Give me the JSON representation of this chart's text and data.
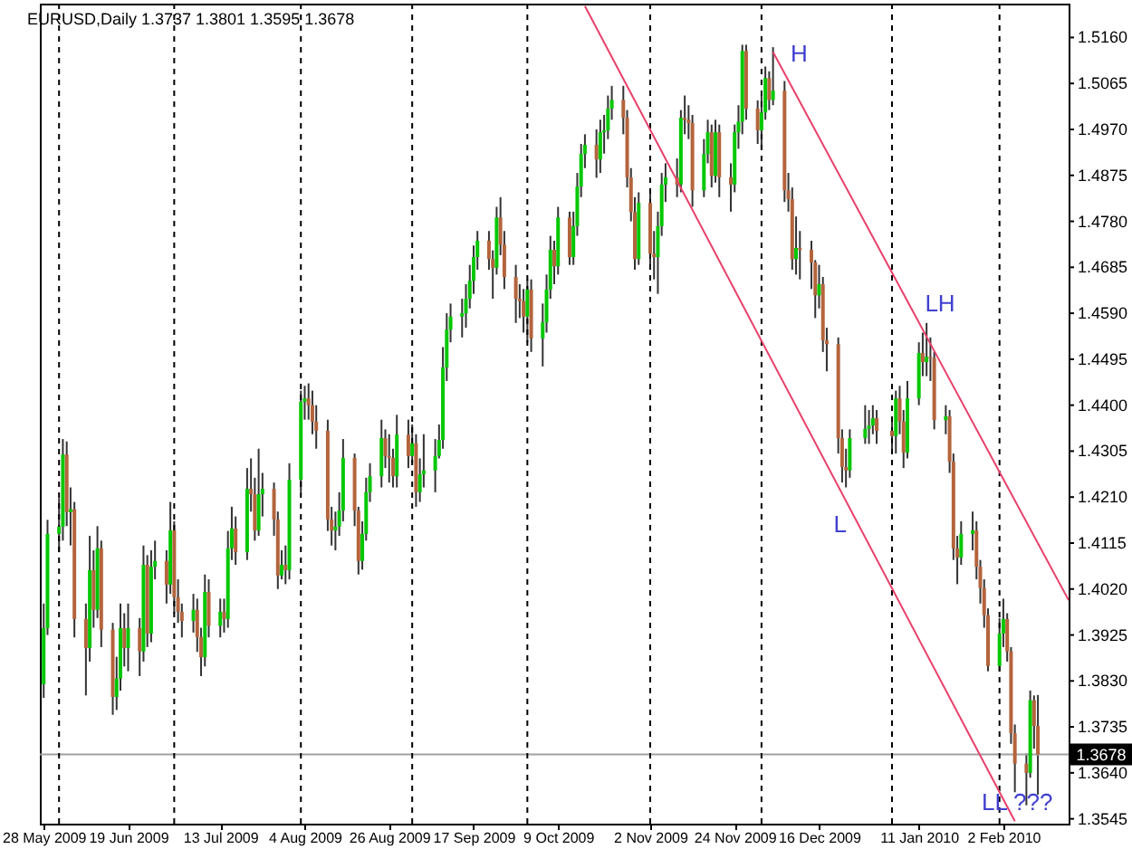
{
  "chart_data": {
    "type": "candlestick",
    "title": "EURUSD,Daily 1.3737 1.3801 1.3595 1.3678",
    "x": [
      "2009-05-28",
      "2009-05-29",
      "2009-06-01",
      "2009-06-02",
      "2009-06-03",
      "2009-06-04",
      "2009-06-05",
      "2009-06-08",
      "2009-06-09",
      "2009-06-10",
      "2009-06-11",
      "2009-06-12",
      "2009-06-15",
      "2009-06-16",
      "2009-06-17",
      "2009-06-18",
      "2009-06-19",
      "2009-06-22",
      "2009-06-23",
      "2009-06-24",
      "2009-06-25",
      "2009-06-26",
      "2009-06-29",
      "2009-06-30",
      "2009-07-01",
      "2009-07-02",
      "2009-07-03",
      "2009-07-06",
      "2009-07-07",
      "2009-07-08",
      "2009-07-09",
      "2009-07-10",
      "2009-07-13",
      "2009-07-14",
      "2009-07-15",
      "2009-07-16",
      "2009-07-17",
      "2009-07-20",
      "2009-07-21",
      "2009-07-22",
      "2009-07-23",
      "2009-07-24",
      "2009-07-27",
      "2009-07-28",
      "2009-07-29",
      "2009-07-30",
      "2009-07-31",
      "2009-08-03",
      "2009-08-04",
      "2009-08-05",
      "2009-08-06",
      "2009-08-07",
      "2009-08-10",
      "2009-08-11",
      "2009-08-12",
      "2009-08-13",
      "2009-08-14",
      "2009-08-17",
      "2009-08-18",
      "2009-08-19",
      "2009-08-20",
      "2009-08-21",
      "2009-08-24",
      "2009-08-25",
      "2009-08-26",
      "2009-08-27",
      "2009-08-28",
      "2009-08-31",
      "2009-09-01",
      "2009-09-02",
      "2009-09-03",
      "2009-09-04",
      "2009-09-07",
      "2009-09-08",
      "2009-09-09",
      "2009-09-10",
      "2009-09-11",
      "2009-09-14",
      "2009-09-15",
      "2009-09-16",
      "2009-09-17",
      "2009-09-18",
      "2009-09-21",
      "2009-09-22",
      "2009-09-23",
      "2009-09-24",
      "2009-09-25",
      "2009-09-28",
      "2009-09-29",
      "2009-09-30",
      "2009-10-01",
      "2009-10-02",
      "2009-10-05",
      "2009-10-06",
      "2009-10-07",
      "2009-10-08",
      "2009-10-09",
      "2009-10-12",
      "2009-10-13",
      "2009-10-14",
      "2009-10-15",
      "2009-10-16",
      "2009-10-19",
      "2009-10-20",
      "2009-10-21",
      "2009-10-22",
      "2009-10-23",
      "2009-10-26",
      "2009-10-27",
      "2009-10-28",
      "2009-10-29",
      "2009-10-30",
      "2009-11-02",
      "2009-11-03",
      "2009-11-04",
      "2009-11-05",
      "2009-11-06",
      "2009-11-09",
      "2009-11-10",
      "2009-11-11",
      "2009-11-12",
      "2009-11-13",
      "2009-11-16",
      "2009-11-17",
      "2009-11-18",
      "2009-11-19",
      "2009-11-20",
      "2009-11-23",
      "2009-11-24",
      "2009-11-25",
      "2009-11-26",
      "2009-11-27",
      "2009-11-30",
      "2009-12-01",
      "2009-12-02",
      "2009-12-03",
      "2009-12-04",
      "2009-12-07",
      "2009-12-08",
      "2009-12-09",
      "2009-12-10",
      "2009-12-11",
      "2009-12-14",
      "2009-12-15",
      "2009-12-16",
      "2009-12-17",
      "2009-12-18",
      "2009-12-21",
      "2009-12-22",
      "2009-12-23",
      "2009-12-24",
      "2009-12-28",
      "2009-12-29",
      "2009-12-30",
      "2009-12-31",
      "2010-01-04",
      "2010-01-05",
      "2010-01-06",
      "2010-01-07",
      "2010-01-08",
      "2010-01-11",
      "2010-01-12",
      "2010-01-13",
      "2010-01-14",
      "2010-01-15",
      "2010-01-18",
      "2010-01-19",
      "2010-01-20",
      "2010-01-21",
      "2010-01-22",
      "2010-01-25",
      "2010-01-26",
      "2010-01-27",
      "2010-01-28",
      "2010-01-29",
      "2010-02-01",
      "2010-02-02",
      "2010-02-03",
      "2010-02-04",
      "2010-02-05",
      "2010-02-08",
      "2010-02-09",
      "2010-02-10",
      "2010-02-11"
    ],
    "ohlc": [
      [
        1.3823,
        1.399,
        1.3795,
        1.3939
      ],
      [
        1.3939,
        1.4163,
        1.3925,
        1.4134
      ],
      [
        1.4134,
        1.4208,
        1.4096,
        1.4149
      ],
      [
        1.4149,
        1.433,
        1.412,
        1.4298
      ],
      [
        1.4298,
        1.4325,
        1.415,
        1.4179
      ],
      [
        1.4179,
        1.423,
        1.411,
        1.4185
      ],
      [
        1.4185,
        1.42,
        1.392,
        1.3958
      ],
      [
        1.3958,
        1.399,
        1.38,
        1.3898
      ],
      [
        1.3898,
        1.413,
        1.387,
        1.4059
      ],
      [
        1.4059,
        1.41,
        1.394,
        1.3977
      ],
      [
        1.3977,
        1.415,
        1.396,
        1.4104
      ],
      [
        1.4104,
        1.412,
        1.39,
        1.3936
      ],
      [
        1.3936,
        1.395,
        1.376,
        1.3797
      ],
      [
        1.3797,
        1.388,
        1.377,
        1.3835
      ],
      [
        1.3835,
        1.399,
        1.381,
        1.3939
      ],
      [
        1.3939,
        1.397,
        1.386,
        1.3898
      ],
      [
        1.3898,
        1.399,
        1.385,
        1.3939
      ],
      [
        1.3939,
        1.396,
        1.384,
        1.3891
      ],
      [
        1.3891,
        1.411,
        1.387,
        1.407
      ],
      [
        1.407,
        1.409,
        1.39,
        1.3928
      ],
      [
        1.3928,
        1.41,
        1.391,
        1.4066
      ],
      [
        1.4066,
        1.412,
        1.404,
        1.4078
      ],
      [
        1.4078,
        1.41,
        1.399,
        1.4029
      ],
      [
        1.4029,
        1.42,
        1.401,
        1.4141
      ],
      [
        1.4141,
        1.416,
        1.397,
        1.4003
      ],
      [
        1.4003,
        1.404,
        1.395,
        1.3973
      ],
      [
        1.3973,
        1.399,
        1.392,
        1.3954
      ],
      [
        1.3954,
        1.401,
        1.393,
        1.3977
      ],
      [
        1.3977,
        1.4,
        1.389,
        1.3921
      ],
      [
        1.3921,
        1.394,
        1.384,
        1.3879
      ],
      [
        1.3879,
        1.405,
        1.386,
        1.4014
      ],
      [
        1.4014,
        1.404,
        1.392,
        1.3944
      ],
      [
        1.3944,
        1.4,
        1.392,
        1.3973
      ],
      [
        1.3973,
        1.4,
        1.393,
        1.3958
      ],
      [
        1.3958,
        1.414,
        1.394,
        1.4104
      ],
      [
        1.4104,
        1.419,
        1.408,
        1.4145
      ],
      [
        1.4145,
        1.417,
        1.407,
        1.4096
      ],
      [
        1.4096,
        1.427,
        1.408,
        1.4227
      ],
      [
        1.4227,
        1.429,
        1.418,
        1.4216
      ],
      [
        1.4216,
        1.425,
        1.412,
        1.4141
      ],
      [
        1.4141,
        1.431,
        1.413,
        1.4216
      ],
      [
        1.4216,
        1.426,
        1.417,
        1.4227
      ],
      [
        1.4227,
        1.424,
        1.413,
        1.4164
      ],
      [
        1.4164,
        1.418,
        1.402,
        1.4048
      ],
      [
        1.4048,
        1.41,
        1.404,
        1.407
      ],
      [
        1.407,
        1.411,
        1.403,
        1.4059
      ],
      [
        1.4059,
        1.428,
        1.404,
        1.4246
      ],
      [
        1.4246,
        1.443,
        1.422,
        1.4407
      ],
      [
        1.4407,
        1.444,
        1.437,
        1.4414
      ],
      [
        1.4414,
        1.4445,
        1.437,
        1.44
      ],
      [
        1.44,
        1.443,
        1.434,
        1.4366
      ],
      [
        1.4366,
        1.44,
        1.431,
        1.4347
      ],
      [
        1.4347,
        1.437,
        1.414,
        1.4164
      ],
      [
        1.4164,
        1.419,
        1.411,
        1.4141
      ],
      [
        1.4141,
        1.418,
        1.41,
        1.4149
      ],
      [
        1.4149,
        1.422,
        1.413,
        1.4182
      ],
      [
        1.4182,
        1.433,
        1.416,
        1.4291
      ],
      [
        1.4291,
        1.43,
        1.415,
        1.4182
      ],
      [
        1.4182,
        1.419,
        1.405,
        1.4078
      ],
      [
        1.4078,
        1.416,
        1.406,
        1.4134
      ],
      [
        1.4134,
        1.425,
        1.412,
        1.422
      ],
      [
        1.422,
        1.428,
        1.42,
        1.4253
      ],
      [
        1.4253,
        1.437,
        1.423,
        1.4332
      ],
      [
        1.4332,
        1.435,
        1.427,
        1.4295
      ],
      [
        1.4295,
        1.434,
        1.424,
        1.4291
      ],
      [
        1.4291,
        1.431,
        1.423,
        1.4253
      ],
      [
        1.4253,
        1.438,
        1.423,
        1.4339
      ],
      [
        1.4339,
        1.437,
        1.427,
        1.4295
      ],
      [
        1.4295,
        1.436,
        1.428,
        1.4321
      ],
      [
        1.4321,
        1.434,
        1.419,
        1.422
      ],
      [
        1.422,
        1.429,
        1.42,
        1.4257
      ],
      [
        1.4257,
        1.434,
        1.423,
        1.4265
      ],
      [
        1.4265,
        1.433,
        1.422,
        1.4295
      ],
      [
        1.4295,
        1.436,
        1.429,
        1.4328
      ],
      [
        1.4328,
        1.452,
        1.431,
        1.4478
      ],
      [
        1.4478,
        1.459,
        1.445,
        1.4556
      ],
      [
        1.4556,
        1.461,
        1.453,
        1.4583
      ],
      [
        1.4583,
        1.462,
        1.454,
        1.459
      ],
      [
        1.459,
        1.465,
        1.456,
        1.462
      ],
      [
        1.462,
        1.469,
        1.46,
        1.4657
      ],
      [
        1.4657,
        1.473,
        1.463,
        1.4706
      ],
      [
        1.4706,
        1.476,
        1.468,
        1.474
      ],
      [
        1.474,
        1.476,
        1.468,
        1.4702
      ],
      [
        1.4702,
        1.472,
        1.462,
        1.4684
      ],
      [
        1.4684,
        1.481,
        1.467,
        1.4788
      ],
      [
        1.4788,
        1.483,
        1.471,
        1.4732
      ],
      [
        1.4732,
        1.476,
        1.464,
        1.4665
      ],
      [
        1.4665,
        1.469,
        1.457,
        1.462
      ],
      [
        1.462,
        1.465,
        1.458,
        1.4615
      ],
      [
        1.4615,
        1.464,
        1.455,
        1.4583
      ],
      [
        1.4583,
        1.466,
        1.453,
        1.4639
      ],
      [
        1.4639,
        1.466,
        1.451,
        1.4538
      ],
      [
        1.4538,
        1.461,
        1.448,
        1.4571
      ],
      [
        1.4571,
        1.467,
        1.455,
        1.4639
      ],
      [
        1.4639,
        1.475,
        1.462,
        1.4721
      ],
      [
        1.4721,
        1.474,
        1.465,
        1.4687
      ],
      [
        1.4687,
        1.481,
        1.467,
        1.4788
      ],
      [
        1.4788,
        1.48,
        1.469,
        1.4706
      ],
      [
        1.4706,
        1.48,
        1.469,
        1.477
      ],
      [
        1.477,
        1.488,
        1.475,
        1.4852
      ],
      [
        1.4852,
        1.494,
        1.483,
        1.4919
      ],
      [
        1.4919,
        1.496,
        1.489,
        1.4938
      ],
      [
        1.4938,
        1.497,
        1.487,
        1.4908
      ],
      [
        1.4908,
        1.499,
        1.488,
        1.4964
      ],
      [
        1.4964,
        1.5,
        1.492,
        1.4968
      ],
      [
        1.4968,
        1.504,
        1.495,
        1.5013
      ],
      [
        1.5013,
        1.506,
        1.499,
        1.5031
      ],
      [
        1.5031,
        1.506,
        1.496,
        1.4994
      ],
      [
        1.4994,
        1.501,
        1.485,
        1.4871
      ],
      [
        1.4871,
        1.489,
        1.478,
        1.4799
      ],
      [
        1.4799,
        1.483,
        1.468,
        1.4702
      ],
      [
        1.4702,
        1.484,
        1.469,
        1.4818
      ],
      [
        1.4818,
        1.484,
        1.469,
        1.4713
      ],
      [
        1.4713,
        1.476,
        1.466,
        1.4706
      ],
      [
        1.4706,
        1.48,
        1.463,
        1.477
      ],
      [
        1.477,
        1.488,
        1.475,
        1.4856
      ],
      [
        1.4856,
        1.49,
        1.482,
        1.4871
      ],
      [
        1.4871,
        1.491,
        1.483,
        1.4856
      ],
      [
        1.4856,
        1.501,
        1.484,
        1.4994
      ],
      [
        1.4994,
        1.504,
        1.496,
        1.499
      ],
      [
        1.499,
        1.502,
        1.495,
        1.4983
      ],
      [
        1.4983,
        1.5,
        1.481,
        1.4844
      ],
      [
        1.4844,
        1.495,
        1.483,
        1.4919
      ],
      [
        1.4919,
        1.499,
        1.49,
        1.4964
      ],
      [
        1.4964,
        1.498,
        1.485,
        1.4874
      ],
      [
        1.4874,
        1.499,
        1.486,
        1.4964
      ],
      [
        1.4964,
        1.498,
        1.483,
        1.4871
      ],
      [
        1.4871,
        1.49,
        1.48,
        1.4856
      ],
      [
        1.4856,
        1.498,
        1.484,
        1.4964
      ],
      [
        1.4964,
        1.502,
        1.493,
        1.4986
      ],
      [
        1.4986,
        1.5145,
        1.496,
        1.5132
      ],
      [
        1.5132,
        1.5145,
        1.499,
        1.5013
      ],
      [
        1.5013,
        1.503,
        1.494,
        1.4968
      ],
      [
        1.4968,
        1.504,
        1.493,
        1.5005
      ],
      [
        1.5005,
        1.51,
        1.499,
        1.5076
      ],
      [
        1.5076,
        1.509,
        1.501,
        1.5031
      ],
      [
        1.5031,
        1.514,
        1.502,
        1.505
      ],
      [
        1.505,
        1.507,
        1.482,
        1.4844
      ],
      [
        1.4844,
        1.488,
        1.48,
        1.4826
      ],
      [
        1.4826,
        1.485,
        1.468,
        1.4702
      ],
      [
        1.4702,
        1.479,
        1.467,
        1.4725
      ],
      [
        1.4725,
        1.476,
        1.466,
        1.4721
      ],
      [
        1.4721,
        1.474,
        1.464,
        1.4695
      ],
      [
        1.4695,
        1.47,
        1.458,
        1.4627
      ],
      [
        1.4627,
        1.469,
        1.46,
        1.465
      ],
      [
        1.465,
        1.4665,
        1.451,
        1.4534
      ],
      [
        1.4534,
        1.456,
        1.447,
        1.4526
      ],
      [
        1.4526,
        1.454,
        1.43,
        1.4332
      ],
      [
        1.4332,
        1.435,
        1.424,
        1.4272
      ],
      [
        1.4272,
        1.431,
        1.423,
        1.4265
      ],
      [
        1.4265,
        1.435,
        1.425,
        1.4332
      ],
      [
        1.4332,
        1.44,
        1.432,
        1.4351
      ],
      [
        1.4351,
        1.439,
        1.432,
        1.4358
      ],
      [
        1.4358,
        1.44,
        1.434,
        1.4373
      ],
      [
        1.4373,
        1.439,
        1.432,
        1.4347
      ],
      [
        1.4347,
        1.437,
        1.43,
        1.4336
      ],
      [
        1.4336,
        1.443,
        1.43,
        1.4414
      ],
      [
        1.4414,
        1.444,
        1.434,
        1.4366
      ],
      [
        1.4366,
        1.439,
        1.427,
        1.4302
      ],
      [
        1.4302,
        1.445,
        1.429,
        1.4414
      ],
      [
        1.4414,
        1.453,
        1.44,
        1.4508
      ],
      [
        1.4508,
        1.455,
        1.446,
        1.4489
      ],
      [
        1.4489,
        1.457,
        1.446,
        1.45
      ],
      [
        1.45,
        1.454,
        1.445,
        1.4497
      ],
      [
        1.4497,
        1.451,
        1.435,
        1.4369
      ],
      [
        1.4369,
        1.44,
        1.434,
        1.4377
      ],
      [
        1.4377,
        1.439,
        1.426,
        1.4283
      ],
      [
        1.4283,
        1.43,
        1.408,
        1.4104
      ],
      [
        1.4104,
        1.413,
        1.403,
        1.4085
      ],
      [
        1.4085,
        1.416,
        1.407,
        1.4134
      ],
      [
        1.4134,
        1.418,
        1.41,
        1.4141
      ],
      [
        1.4141,
        1.416,
        1.404,
        1.4066
      ],
      [
        1.4066,
        1.408,
        1.399,
        1.4022
      ],
      [
        1.4022,
        1.404,
        1.394,
        1.3966
      ],
      [
        1.3966,
        1.398,
        1.385,
        1.3861
      ],
      [
        1.3861,
        1.396,
        1.385,
        1.3928
      ],
      [
        1.3928,
        1.4,
        1.39,
        1.3958
      ],
      [
        1.3958,
        1.397,
        1.387,
        1.3891
      ],
      [
        1.3891,
        1.39,
        1.37,
        1.3722
      ],
      [
        1.3722,
        1.374,
        1.36,
        1.3659
      ],
      [
        1.3659,
        1.368,
        1.3573,
        1.364
      ],
      [
        1.364,
        1.381,
        1.363,
        1.379
      ],
      [
        1.379,
        1.38,
        1.369,
        1.3737
      ],
      [
        1.3737,
        1.3801,
        1.3595,
        1.3678
      ]
    ],
    "colors": [
      "#00c800",
      "#00c800",
      "#00c800",
      "#00c800",
      "#b4643c",
      "#00c800",
      "#b4643c",
      "#b4643c",
      "#00c800",
      "#b4643c",
      "#00c800",
      "#b4643c",
      "#b4643c",
      "#00c800",
      "#00c800",
      "#b4643c",
      "#00c800",
      "#b4643c",
      "#00c800",
      "#b4643c",
      "#00c800",
      "#00c800",
      "#b4643c",
      "#00c800",
      "#b4643c",
      "#b4643c",
      "#b4643c",
      "#00c800",
      "#b4643c",
      "#b4643c",
      "#00c800",
      "#b4643c",
      "#00c800",
      "#b4643c",
      "#00c800",
      "#00c800",
      "#b4643c",
      "#00c800",
      "#b4643c",
      "#b4643c",
      "#00c800",
      "#00c800",
      "#b4643c",
      "#b4643c",
      "#00c800",
      "#b4643c",
      "#00c800",
      "#00c800",
      "#00c800",
      "#b4643c",
      "#b4643c",
      "#b4643c",
      "#b4643c",
      "#b4643c",
      "#00c800",
      "#00c800",
      "#00c800",
      "#b4643c",
      "#b4643c",
      "#00c800",
      "#00c800",
      "#00c800",
      "#00c800",
      "#b4643c",
      "#b4643c",
      "#b4643c",
      "#00c800",
      "#b4643c",
      "#00c800",
      "#b4643c",
      "#00c800",
      "#00c800",
      "#00c800",
      "#00c800",
      "#00c800",
      "#00c800",
      "#00c800",
      "#00c800",
      "#00c800",
      "#00c800",
      "#00c800",
      "#00c800",
      "#b4643c",
      "#b4643c",
      "#00c800",
      "#b4643c",
      "#b4643c",
      "#b4643c",
      "#b4643c",
      "#b4643c",
      "#00c800",
      "#b4643c",
      "#00c800",
      "#00c800",
      "#00c800",
      "#b4643c",
      "#00c800",
      "#b4643c",
      "#00c800",
      "#00c800",
      "#00c800",
      "#00c800",
      "#b4643c",
      "#00c800",
      "#00c800",
      "#00c800",
      "#00c800",
      "#b4643c",
      "#b4643c",
      "#b4643c",
      "#b4643c",
      "#00c800",
      "#b4643c",
      "#b4643c",
      "#00c800",
      "#00c800",
      "#00c800",
      "#b4643c",
      "#00c800",
      "#b4643c",
      "#b4643c",
      "#b4643c",
      "#00c800",
      "#00c800",
      "#b4643c",
      "#00c800",
      "#b4643c",
      "#b4643c",
      "#00c800",
      "#00c800",
      "#00c800",
      "#b4643c",
      "#b4643c",
      "#00c800",
      "#00c800",
      "#b4643c",
      "#00c800",
      "#b4643c",
      "#b4643c",
      "#b4643c",
      "#00c800",
      "#b4643c",
      "#b4643c",
      "#b4643c",
      "#00c800",
      "#b4643c",
      "#b4643c",
      "#b4643c",
      "#b4643c",
      "#b4643c",
      "#00c800",
      "#00c800",
      "#00c800",
      "#00c800",
      "#b4643c",
      "#b4643c",
      "#00c800",
      "#b4643c",
      "#b4643c",
      "#00c800",
      "#00c800",
      "#b4643c",
      "#00c800",
      "#b4643c",
      "#b4643c",
      "#00c800",
      "#b4643c",
      "#b4643c",
      "#b4643c",
      "#00c800",
      "#00c800",
      "#b4643c",
      "#b4643c",
      "#b4643c",
      "#b4643c",
      "#00c800",
      "#00c800",
      "#b4643c",
      "#b4643c",
      "#b4643c",
      "#b4643c",
      "#00c800",
      "#b4643c",
      "#b4643c"
    ],
    "xlim": [
      "2009-05-27",
      "2010-02-19"
    ],
    "xticks": [
      {
        "value": "2009-05-28",
        "label": "28 May 2009"
      },
      {
        "value": "2009-06-19",
        "label": "19 Jun 2009"
      },
      {
        "value": "2009-07-13",
        "label": "13 Jul 2009"
      },
      {
        "value": "2009-08-04",
        "label": "4 Aug 2009"
      },
      {
        "value": "2009-08-26",
        "label": "26 Aug 2009"
      },
      {
        "value": "2009-09-17",
        "label": "17 Sep 2009"
      },
      {
        "value": "2009-10-09",
        "label": "9 Oct 2009"
      },
      {
        "value": "2009-11-02",
        "label": "2 Nov 2009"
      },
      {
        "value": "2009-11-24",
        "label": "24 Nov 2009"
      },
      {
        "value": "2009-12-16",
        "label": "16 Dec 2009"
      },
      {
        "value": "2010-01-11",
        "label": "11 Jan 2010"
      },
      {
        "value": "2010-02-02",
        "label": "2 Feb 2010"
      }
    ],
    "ylim": [
      1.3535,
      1.523
    ],
    "yticks": [
      1.3545,
      {
        "value": 1.364,
        "label": "1.3640"
      },
      1.3735,
      {
        "value": 1.383,
        "label": "1.3830"
      },
      1.3925,
      {
        "value": 1.402,
        "label": "1.4020"
      },
      1.4115,
      {
        "value": 1.421,
        "label": "1.4210"
      },
      1.4305,
      {
        "value": 1.44,
        "label": "1.4400"
      },
      1.4495,
      {
        "value": 1.459,
        "label": "1.4590"
      },
      1.4685,
      {
        "value": 1.478,
        "label": "1.4780"
      },
      1.4875,
      {
        "value": 1.497,
        "label": "1.4970"
      },
      1.5065,
      {
        "value": 1.516,
        "label": "1.5160"
      }
    ],
    "grid": false,
    "series": [
      {
        "type": "line",
        "x": [
          "2009-12-04",
          "2010-02-19"
        ],
        "values": [
          1.513,
          1.3997
        ],
        "color": "#e8406a"
      },
      {
        "type": "line",
        "x": [
          "2009-10-16",
          "2010-02-05"
        ],
        "values": [
          1.5225,
          1.354
        ],
        "color": "#e8406a"
      }
    ],
    "ref_lines": [
      {
        "axis": "y",
        "value": 1.3678,
        "label": "1.3678",
        "color": "#a0a0a0"
      },
      {
        "axis": "x",
        "value": "2009-06-01",
        "color": "#000000",
        "line_style": "dashed"
      },
      {
        "axis": "x",
        "value": "2009-07-01",
        "color": "#000000",
        "line_style": "dashed"
      },
      {
        "axis": "x",
        "value": "2009-08-03",
        "color": "#000000",
        "line_style": "dashed"
      },
      {
        "axis": "x",
        "value": "2009-09-01",
        "color": "#000000",
        "line_style": "dashed"
      },
      {
        "axis": "x",
        "value": "2009-10-01",
        "color": "#000000",
        "line_style": "dashed"
      },
      {
        "axis": "x",
        "value": "2009-11-02",
        "color": "#000000",
        "line_style": "dashed"
      },
      {
        "axis": "x",
        "value": "2009-12-01",
        "color": "#000000",
        "line_style": "dashed"
      },
      {
        "axis": "x",
        "value": "2010-01-04",
        "color": "#000000",
        "line_style": "dashed"
      },
      {
        "axis": "x",
        "value": "2010-02-01",
        "color": "#000000",
        "line_style": "dashed"
      }
    ],
    "annotations": [
      "H",
      "LH",
      "L",
      "LL ???"
    ]
  }
}
